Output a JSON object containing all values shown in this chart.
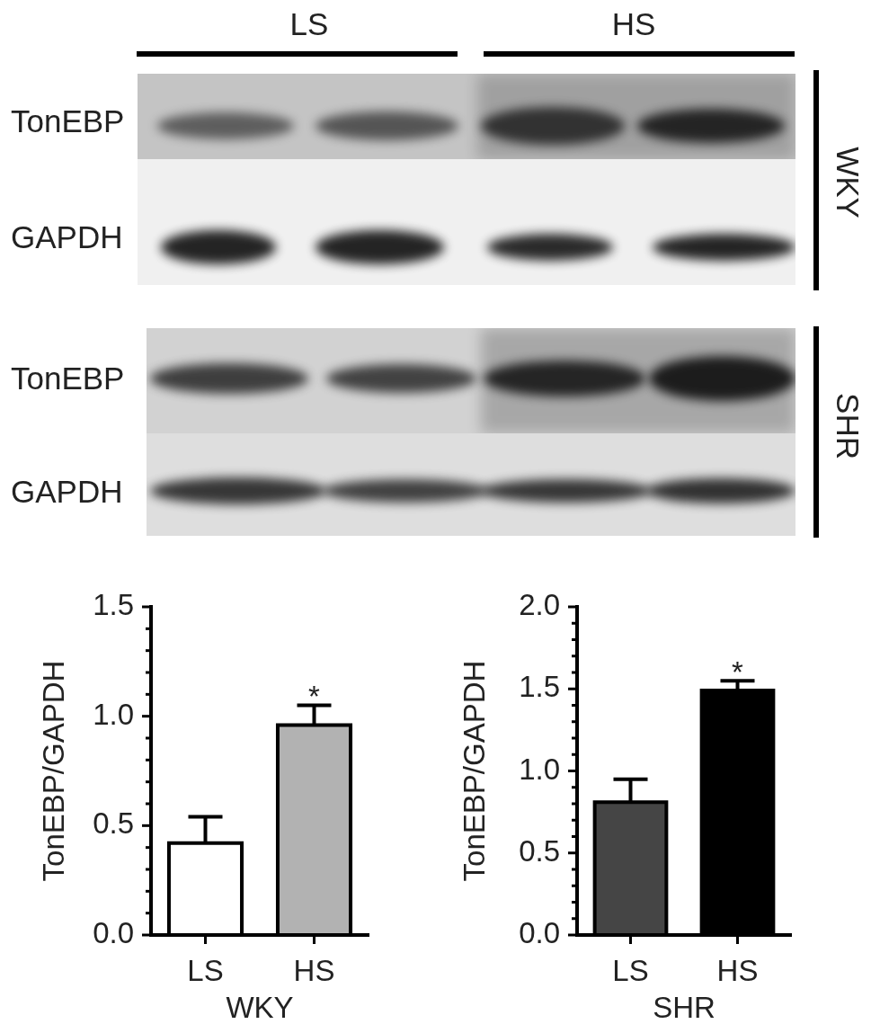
{
  "chart_data": [
    {
      "type": "other",
      "annotations": [
        "LS",
        "HS",
        "TonEBP",
        "GAPDH",
        "WKY",
        "TonEBP",
        "GAPDH",
        "SHR"
      ]
    },
    {
      "type": "bar",
      "categories": [
        "LS",
        "HS"
      ],
      "values": [
        0.42,
        0.96
      ],
      "colors": [
        "#ffffff",
        "#b2b2b2"
      ],
      "errors": [
        [
          0.42,
          0.54
        ],
        [
          0.96,
          1.05
        ]
      ],
      "xlabel": "WKY",
      "ylabel": "TonEBP/GAPDH",
      "ylim": [
        0,
        1.5
      ],
      "yticks": [
        {
          "value": 0,
          "label": "0.0"
        },
        {
          "value": 0.1,
          "label": null
        },
        {
          "value": 0.2,
          "label": null
        },
        {
          "value": 0.3,
          "label": null
        },
        {
          "value": 0.4,
          "label": null
        },
        {
          "value": 0.5,
          "label": "0.5"
        },
        {
          "value": 0.6,
          "label": null
        },
        {
          "value": 0.7,
          "label": null
        },
        {
          "value": 0.8,
          "label": null
        },
        {
          "value": 0.9,
          "label": null
        },
        {
          "value": 1,
          "label": "1.0"
        },
        {
          "value": 1.1,
          "label": null
        },
        {
          "value": 1.2,
          "label": null
        },
        {
          "value": 1.3,
          "label": null
        },
        {
          "value": 1.4,
          "label": null
        },
        {
          "value": 1.5,
          "label": "1.5"
        }
      ],
      "grid": false,
      "legend": false,
      "annotations": [
        {
          "text": "*",
          "x": "HS",
          "y": 0.96
        }
      ]
    },
    {
      "type": "bar",
      "categories": [
        "LS",
        "HS"
      ],
      "values": [
        0.81,
        1.49
      ],
      "colors": [
        "#454545",
        "#000000"
      ],
      "errors": [
        [
          0.81,
          0.95
        ],
        [
          1.49,
          1.55
        ]
      ],
      "xlabel": "SHR",
      "ylabel": "TonEBP/GAPDH",
      "ylim": [
        0,
        2
      ],
      "yticks": [
        {
          "value": 0,
          "label": "0.0"
        },
        {
          "value": 0.1,
          "label": null
        },
        {
          "value": 0.2,
          "label": null
        },
        {
          "value": 0.3,
          "label": null
        },
        {
          "value": 0.4,
          "label": null
        },
        {
          "value": 0.5,
          "label": "0.5"
        },
        {
          "value": 0.6,
          "label": null
        },
        {
          "value": 0.7,
          "label": null
        },
        {
          "value": 0.8,
          "label": null
        },
        {
          "value": 0.9,
          "label": null
        },
        {
          "value": 1,
          "label": "1.0"
        },
        {
          "value": 1.1,
          "label": null
        },
        {
          "value": 1.2,
          "label": null
        },
        {
          "value": 1.3,
          "label": null
        },
        {
          "value": 1.4,
          "label": null
        },
        {
          "value": 1.5,
          "label": "1.5"
        },
        {
          "value": 1.6,
          "label": null
        },
        {
          "value": 1.7,
          "label": null
        },
        {
          "value": 1.8,
          "label": null
        },
        {
          "value": 1.9,
          "label": null
        },
        {
          "value": 2,
          "label": "2.0"
        }
      ],
      "grid": false,
      "legend": false,
      "annotations": [
        {
          "text": "*",
          "x": "HS",
          "y": 1.49
        }
      ]
    }
  ]
}
